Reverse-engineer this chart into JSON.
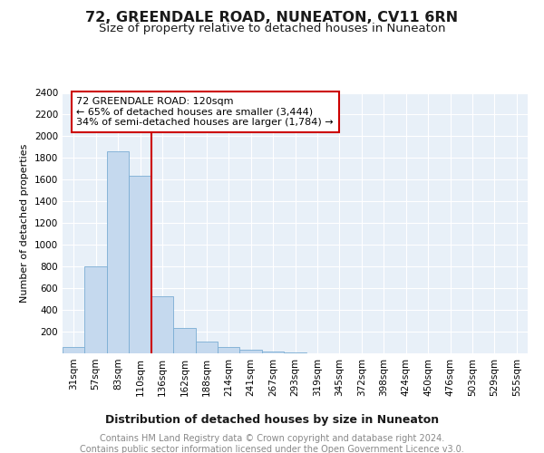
{
  "title1": "72, GREENDALE ROAD, NUNEATON, CV11 6RN",
  "title2": "Size of property relative to detached houses in Nuneaton",
  "xlabel": "Distribution of detached houses by size in Nuneaton",
  "ylabel": "Number of detached properties",
  "categories": [
    "31sqm",
    "57sqm",
    "83sqm",
    "110sqm",
    "136sqm",
    "162sqm",
    "188sqm",
    "214sqm",
    "241sqm",
    "267sqm",
    "293sqm",
    "319sqm",
    "345sqm",
    "372sqm",
    "398sqm",
    "424sqm",
    "450sqm",
    "476sqm",
    "503sqm",
    "529sqm",
    "555sqm"
  ],
  "values": [
    60,
    800,
    1860,
    1640,
    530,
    235,
    110,
    55,
    30,
    20,
    5,
    0,
    0,
    0,
    0,
    0,
    0,
    0,
    0,
    0,
    0
  ],
  "bar_color": "#c5d9ee",
  "bar_edge_color": "#7aadd4",
  "bg_color": "#e8f0f8",
  "grid_color": "#ffffff",
  "annotation_text": "72 GREENDALE ROAD: 120sqm\n← 65% of detached houses are smaller (3,444)\n34% of semi-detached houses are larger (1,784) →",
  "annotation_box_color": "#ffffff",
  "annotation_box_edge": "#cc0000",
  "red_line_color": "#cc0000",
  "ylim": [
    0,
    2400
  ],
  "yticks": [
    0,
    200,
    400,
    600,
    800,
    1000,
    1200,
    1400,
    1600,
    1800,
    2000,
    2200,
    2400
  ],
  "footer1": "Contains HM Land Registry data © Crown copyright and database right 2024.",
  "footer2": "Contains public sector information licensed under the Open Government Licence v3.0.",
  "title1_fontsize": 11.5,
  "title2_fontsize": 9.5,
  "xlabel_fontsize": 9,
  "ylabel_fontsize": 8,
  "tick_fontsize": 7.5,
  "annotation_fontsize": 8,
  "footer_fontsize": 7
}
